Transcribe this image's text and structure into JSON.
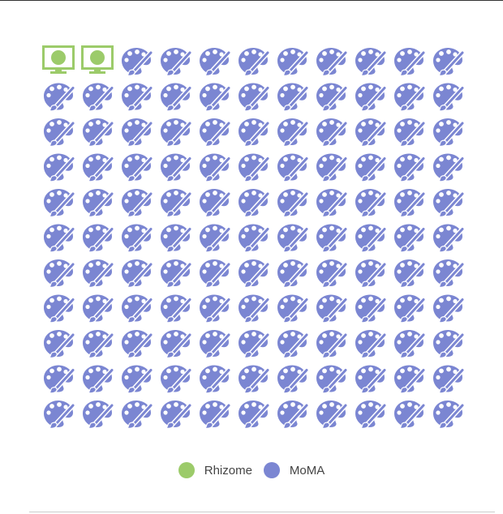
{
  "chart_data": {
    "type": "pictogram",
    "grid": {
      "columns": 11,
      "rows": 11
    },
    "series": [
      {
        "name": "Rhizome",
        "count": 2,
        "color": "#9ccb6a",
        "icon": "monitor-icon"
      },
      {
        "name": "MoMA",
        "count": 119,
        "color": "#7b86d2",
        "icon": "palette-brush-icon"
      }
    ],
    "legend_position": "bottom-center"
  }
}
